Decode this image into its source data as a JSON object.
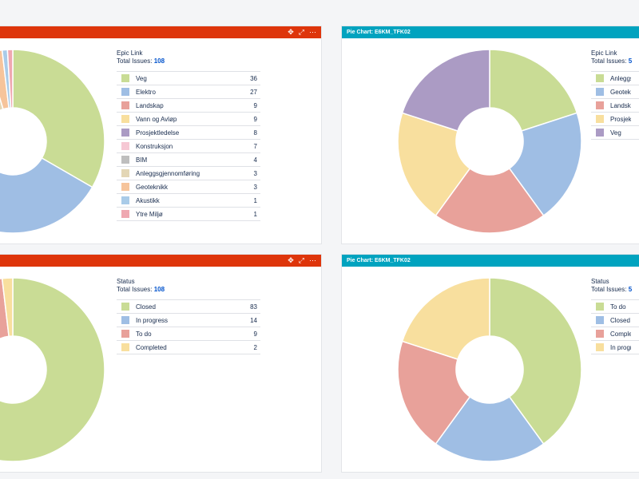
{
  "gadgets": [
    {
      "header_title": "",
      "header_color": "#de350b",
      "icons": [
        "move-icon",
        "expand-icon",
        "more-icon"
      ],
      "legend_title": "Epic Link",
      "total_label": "Total Issues:",
      "total_value": "108",
      "items": [
        {
          "label": "Veg",
          "count": "36",
          "color": "#c9dc95"
        },
        {
          "label": "Elektro",
          "count": "27",
          "color": "#9fbee4"
        },
        {
          "label": "Landskap",
          "count": "9",
          "color": "#e8a19a"
        },
        {
          "label": "Vann og Avløp",
          "count": "9",
          "color": "#f8df9e"
        },
        {
          "label": "Prosjektledelse",
          "count": "8",
          "color": "#ab9bc4"
        },
        {
          "label": "Konstruksjon",
          "count": "7",
          "color": "#f6c8d4"
        },
        {
          "label": "BIM",
          "count": "4",
          "color": "#bebebe"
        },
        {
          "label": "Anleggsgjennomføring",
          "count": "3",
          "color": "#e3d6b5"
        },
        {
          "label": "Geoteknikk",
          "count": "3",
          "color": "#f6c49b"
        },
        {
          "label": "Akustikk",
          "count": "1",
          "color": "#a9cbe8"
        },
        {
          "label": "Ytre Miljø",
          "count": "1",
          "color": "#efa8b1"
        }
      ]
    },
    {
      "header_title": "Pie Chart: E6KM_TFK02",
      "header_color": "#00a3bf",
      "icons": [],
      "legend_title": "Epic Link",
      "total_label": "Total Issues:",
      "total_value": "5",
      "items": [
        {
          "label": "Anleggsgjennomføring",
          "count": "1",
          "color": "#c9dc95"
        },
        {
          "label": "Geoteknikk",
          "count": "1",
          "color": "#9fbee4"
        },
        {
          "label": "Landskap",
          "count": "1",
          "color": "#e8a19a"
        },
        {
          "label": "Prosjektledelse",
          "count": "1",
          "color": "#f8df9e"
        },
        {
          "label": "Veg",
          "count": "1",
          "color": "#ab9bc4"
        }
      ]
    },
    {
      "header_title": "",
      "header_color": "#de350b",
      "icons": [
        "move-icon",
        "expand-icon",
        "more-icon"
      ],
      "legend_title": "Status",
      "total_label": "Total Issues:",
      "total_value": "108",
      "items": [
        {
          "label": "Closed",
          "count": "83",
          "color": "#c9dc95"
        },
        {
          "label": "In progress",
          "count": "14",
          "color": "#9fbee4"
        },
        {
          "label": "To do",
          "count": "9",
          "color": "#e8a19a"
        },
        {
          "label": "Completed",
          "count": "2",
          "color": "#f8df9e"
        }
      ]
    },
    {
      "header_title": "Pie Chart: E6KM_TFK02",
      "header_color": "#00a3bf",
      "icons": [],
      "legend_title": "Status",
      "total_label": "Total Issues:",
      "total_value": "5",
      "items": [
        {
          "label": "To do",
          "count": "2",
          "color": "#c9dc95"
        },
        {
          "label": "Closed",
          "count": "1",
          "color": "#9fbee4"
        },
        {
          "label": "Completed",
          "count": "1",
          "color": "#e8a19a"
        },
        {
          "label": "In progress",
          "count": "1",
          "color": "#f8df9e"
        }
      ]
    }
  ],
  "chart_data": [
    {
      "type": "pie",
      "title": "",
      "legend_title": "Epic Link",
      "categories": [
        "Veg",
        "Elektro",
        "Landskap",
        "Vann og Avløp",
        "Prosjektledelse",
        "Konstruksjon",
        "BIM",
        "Anleggsgjennomføring",
        "Geoteknikk",
        "Akustikk",
        "Ytre Miljø"
      ],
      "values": [
        36,
        27,
        9,
        9,
        8,
        7,
        4,
        3,
        3,
        1,
        1
      ]
    },
    {
      "type": "pie",
      "title": "Pie Chart: E6KM_TFK02",
      "legend_title": "Epic Link",
      "categories": [
        "Anleggsgjennomføring",
        "Geoteknikk",
        "Landskap",
        "Prosjektledelse",
        "Veg"
      ],
      "values": [
        1,
        1,
        1,
        1,
        1
      ]
    },
    {
      "type": "pie",
      "title": "",
      "legend_title": "Status",
      "categories": [
        "Closed",
        "In progress",
        "To do",
        "Completed"
      ],
      "values": [
        83,
        14,
        9,
        2
      ]
    },
    {
      "type": "pie",
      "title": "Pie Chart: E6KM_TFK02",
      "legend_title": "Status",
      "categories": [
        "To do",
        "Closed",
        "Completed",
        "In progress"
      ],
      "values": [
        2,
        1,
        1,
        1
      ]
    }
  ]
}
